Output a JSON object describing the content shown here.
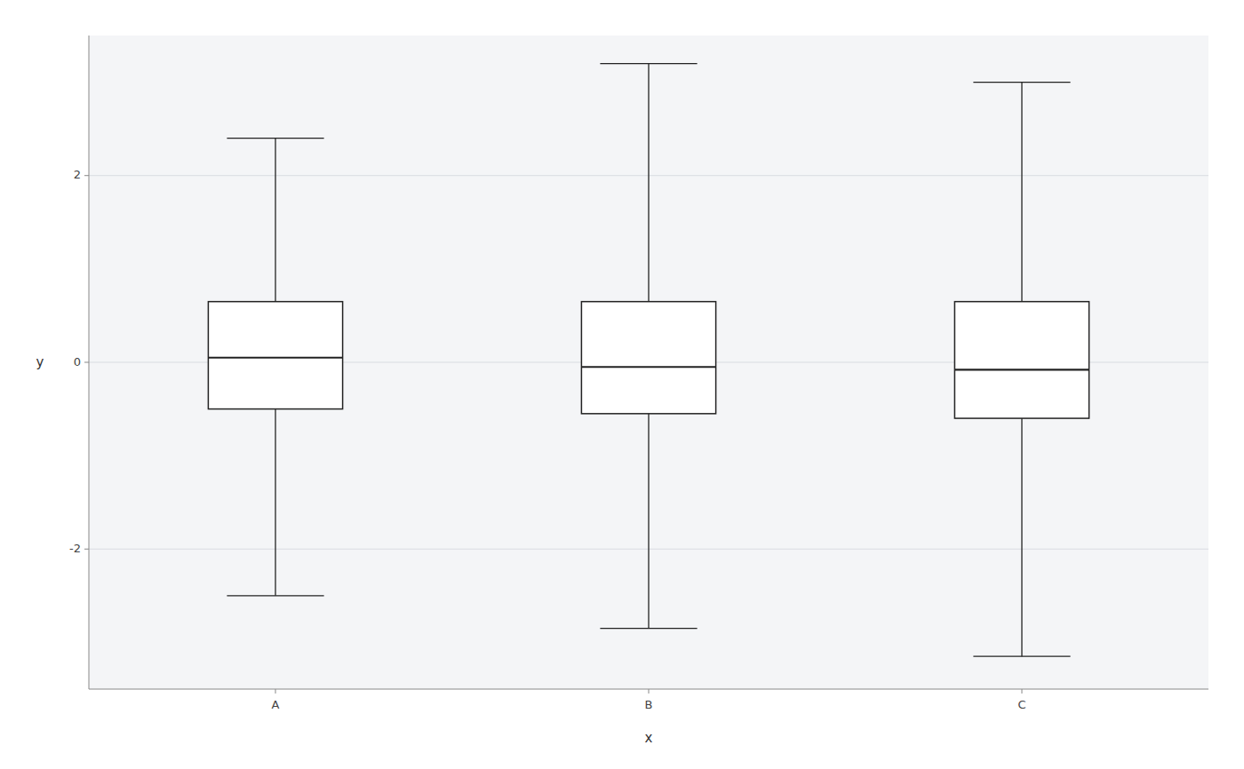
{
  "chart_data": {
    "type": "box",
    "categories": [
      "A",
      "B",
      "C"
    ],
    "boxes": [
      {
        "whisker_low": -2.5,
        "q1": -0.5,
        "median": 0.05,
        "q3": 0.65,
        "whisker_high": 2.4
      },
      {
        "whisker_low": -2.85,
        "q1": -0.55,
        "median": -0.05,
        "q3": 0.65,
        "whisker_high": 3.2
      },
      {
        "whisker_low": -3.15,
        "q1": -0.6,
        "median": -0.08,
        "q3": 0.65,
        "whisker_high": 3.0
      }
    ],
    "xlabel": "x",
    "ylabel": "y",
    "ylim": [
      -3.5,
      3.5
    ],
    "yticks": [
      -2,
      0,
      2
    ],
    "grid": true,
    "color": "#222222"
  }
}
